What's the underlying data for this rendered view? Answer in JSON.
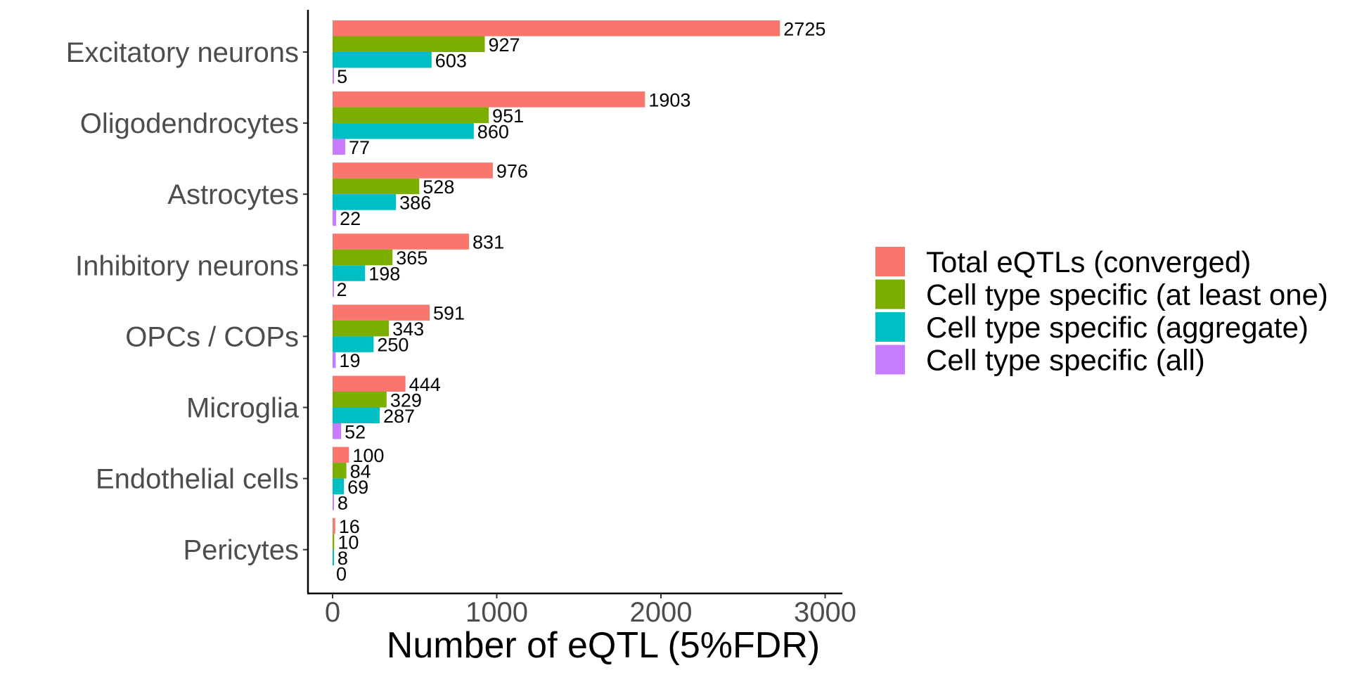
{
  "chart_data": {
    "type": "bar",
    "orientation": "horizontal",
    "title": "",
    "xlabel": "Number of eQTL (5%FDR)",
    "ylabel": "",
    "xlim": [
      -150,
      3100
    ],
    "xticks": [
      0,
      1000,
      2000,
      3000
    ],
    "xtick_labels": [
      "0",
      "1000",
      "2000",
      "3000"
    ],
    "grid": false,
    "legend_position": "right",
    "categories": [
      "Excitatory neurons",
      "Oligodendrocytes",
      "Astrocytes",
      "Inhibitory neurons",
      "OPCs / COPs",
      "Microglia",
      "Endothelial cells",
      "Pericytes"
    ],
    "series": [
      {
        "name": "Total eQTLs (converged)",
        "color": "#F8766D",
        "values": [
          2725,
          1903,
          976,
          831,
          591,
          444,
          100,
          16
        ]
      },
      {
        "name": "Cell type specific (at least one)",
        "color": "#7CAE00",
        "values": [
          927,
          951,
          528,
          365,
          343,
          329,
          84,
          10
        ]
      },
      {
        "name": "Cell type specific (aggregate)",
        "color": "#00BFC4",
        "values": [
          603,
          860,
          386,
          198,
          250,
          287,
          69,
          8
        ]
      },
      {
        "name": "Cell type specific (all)",
        "color": "#C77CFF",
        "values": [
          5,
          77,
          22,
          2,
          19,
          52,
          8,
          0
        ]
      }
    ]
  }
}
